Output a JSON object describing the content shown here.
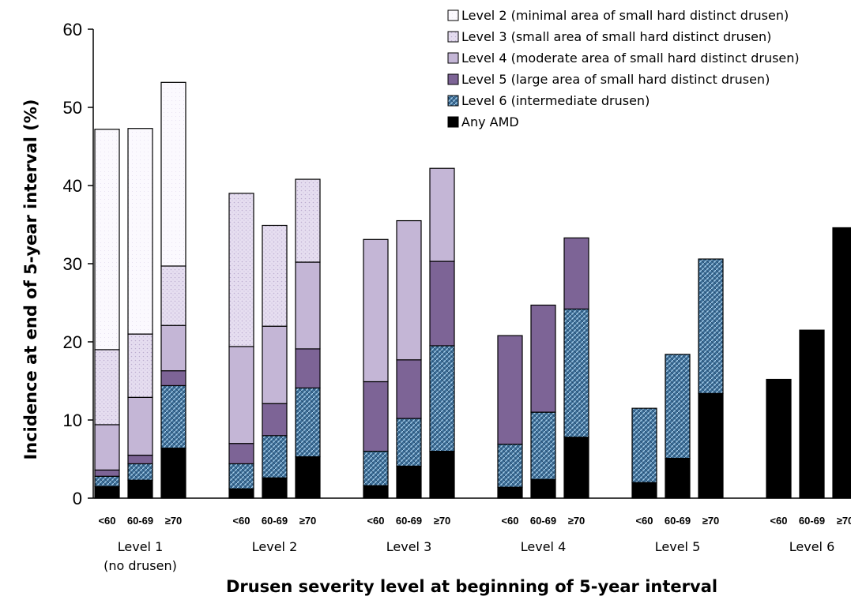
{
  "chart_data": {
    "type": "bar",
    "stacked": true,
    "ylabel": "Incidence at end of 5-year interval (%)",
    "xlabel": "Drusen severity level at beginning of 5-year interval",
    "ylim": [
      0,
      60
    ],
    "yticks": [
      0,
      10,
      20,
      30,
      40,
      50,
      60
    ],
    "grid": false,
    "legend_position": "top-right",
    "groups": [
      {
        "label": "Level 1",
        "sublabel": "(no drusen)"
      },
      {
        "label": "Level 2",
        "sublabel": ""
      },
      {
        "label": "Level 3",
        "sublabel": ""
      },
      {
        "label": "Level 4",
        "sublabel": ""
      },
      {
        "label": "Level 5",
        "sublabel": ""
      },
      {
        "label": "Level 6",
        "sublabel": ""
      }
    ],
    "age_categories": [
      "<60",
      "60-69",
      "≥70"
    ],
    "series": [
      {
        "name": "Any AMD",
        "fill": "#000000",
        "values": [
          [
            1.5,
            2.3,
            6.4
          ],
          [
            1.2,
            2.6,
            5.3
          ],
          [
            1.6,
            4.1,
            6.0
          ],
          [
            1.4,
            2.4,
            7.8
          ],
          [
            2.0,
            5.1,
            13.4
          ],
          [
            15.2,
            21.5,
            34.6
          ]
        ]
      },
      {
        "name": "Level 6 (intermediate drusen)",
        "fill": "#4a7fa8",
        "values": [
          [
            1.3,
            2.1,
            8.0
          ],
          [
            3.2,
            5.4,
            8.8
          ],
          [
            4.4,
            6.1,
            13.5
          ],
          [
            5.5,
            8.6,
            16.4
          ],
          [
            9.5,
            13.3,
            17.2
          ],
          [
            0,
            0,
            0
          ]
        ]
      },
      {
        "name": "Level 5 (large area of small hard distinct drusen)",
        "fill": "#7d6496",
        "values": [
          [
            0.8,
            1.1,
            1.9
          ],
          [
            2.6,
            4.1,
            5.0
          ],
          [
            8.9,
            7.5,
            10.8
          ],
          [
            13.9,
            13.7,
            9.1
          ],
          [
            0,
            0,
            0
          ],
          [
            0,
            0,
            0
          ]
        ]
      },
      {
        "name": "Level 4 (moderate area of small hard distinct drusen)",
        "fill": "#c4b6d6",
        "values": [
          [
            5.8,
            7.4,
            5.8
          ],
          [
            12.4,
            9.9,
            11.1
          ],
          [
            18.2,
            17.8,
            11.9
          ],
          [
            0,
            0,
            0
          ],
          [
            0,
            0,
            0
          ],
          [
            0,
            0,
            0
          ]
        ]
      },
      {
        "name": "Level 3 (small area of small hard distinct drusen)",
        "fill": "#ddd3ea",
        "values": [
          [
            9.6,
            8.1,
            7.6
          ],
          [
            19.6,
            12.9,
            10.6
          ],
          [
            0,
            0,
            0
          ],
          [
            0,
            0,
            0
          ],
          [
            0,
            0,
            0
          ],
          [
            0,
            0,
            0
          ]
        ]
      },
      {
        "name": "Level 2 (minimal area of small hard distinct drusen)",
        "fill": "#faf8fd",
        "values": [
          [
            28.2,
            26.3,
            23.5
          ],
          [
            0,
            0,
            0
          ],
          [
            0,
            0,
            0
          ],
          [
            0,
            0,
            0
          ],
          [
            0,
            0,
            0
          ],
          [
            0,
            0,
            0
          ]
        ]
      }
    ],
    "legend_order": [
      5,
      4,
      3,
      2,
      1,
      0
    ]
  }
}
